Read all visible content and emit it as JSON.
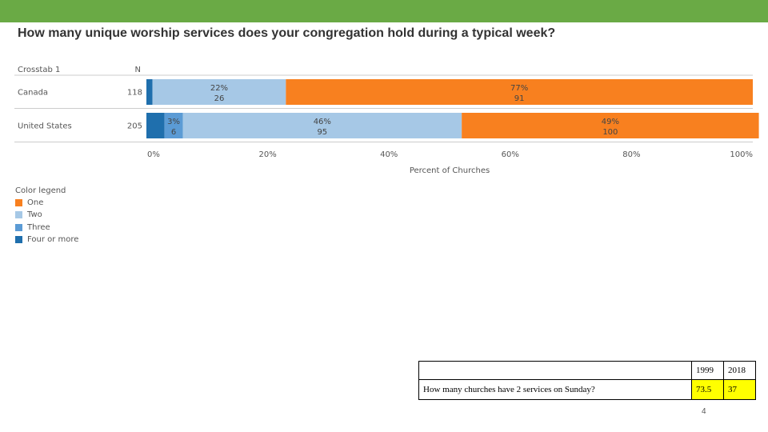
{
  "title": "How many unique worship services does your congregation hold during a typical week?",
  "colors": {
    "top_bar": "#6aaa45",
    "one": "#f8801f",
    "two": "#a6c8e6",
    "three": "#5b9bd5",
    "four_or_more": "#1f6fad",
    "highlight": "#ffff00"
  },
  "chart_data": {
    "type": "bar",
    "orientation": "horizontal",
    "stacked": true,
    "table_header": {
      "label": "Crosstab 1",
      "n": "N"
    },
    "categories": [
      "Canada",
      "United States"
    ],
    "n": [
      118,
      205
    ],
    "series": [
      {
        "name": "Four or more",
        "color": "#1f6fad",
        "percent": [
          1,
          3
        ],
        "counts": [
          null,
          null
        ],
        "label_pct": [
          "",
          ""
        ],
        "label_count": [
          "",
          ""
        ]
      },
      {
        "name": "Three",
        "color": "#5b9bd5",
        "percent": [
          0,
          3
        ],
        "counts": [
          null,
          6
        ],
        "label_pct": [
          "",
          "3%"
        ],
        "label_count": [
          "",
          "6"
        ]
      },
      {
        "name": "Two",
        "color": "#a6c8e6",
        "percent": [
          22,
          46
        ],
        "counts": [
          26,
          95
        ],
        "label_pct": [
          "22%",
          "46%"
        ],
        "label_count": [
          "26",
          "95"
        ]
      },
      {
        "name": "One",
        "color": "#f8801f",
        "percent": [
          77,
          49
        ],
        "counts": [
          91,
          100
        ],
        "label_pct": [
          "77%",
          "49%"
        ],
        "label_count": [
          "91",
          "100"
        ]
      }
    ],
    "xlim": [
      0,
      100
    ],
    "xticks": [
      "0%",
      "20%",
      "40%",
      "60%",
      "80%",
      "100%"
    ],
    "xlabel": "Percent of Churches",
    "legend": {
      "title": "Color legend",
      "items": [
        "One",
        "Two",
        "Three",
        "Four or more"
      ]
    }
  },
  "comparison_table": {
    "years": [
      "1999",
      "2018"
    ],
    "question": "How many churches have 2 services on Sunday?",
    "values": [
      "73.5",
      "37"
    ]
  },
  "page_number": "4"
}
